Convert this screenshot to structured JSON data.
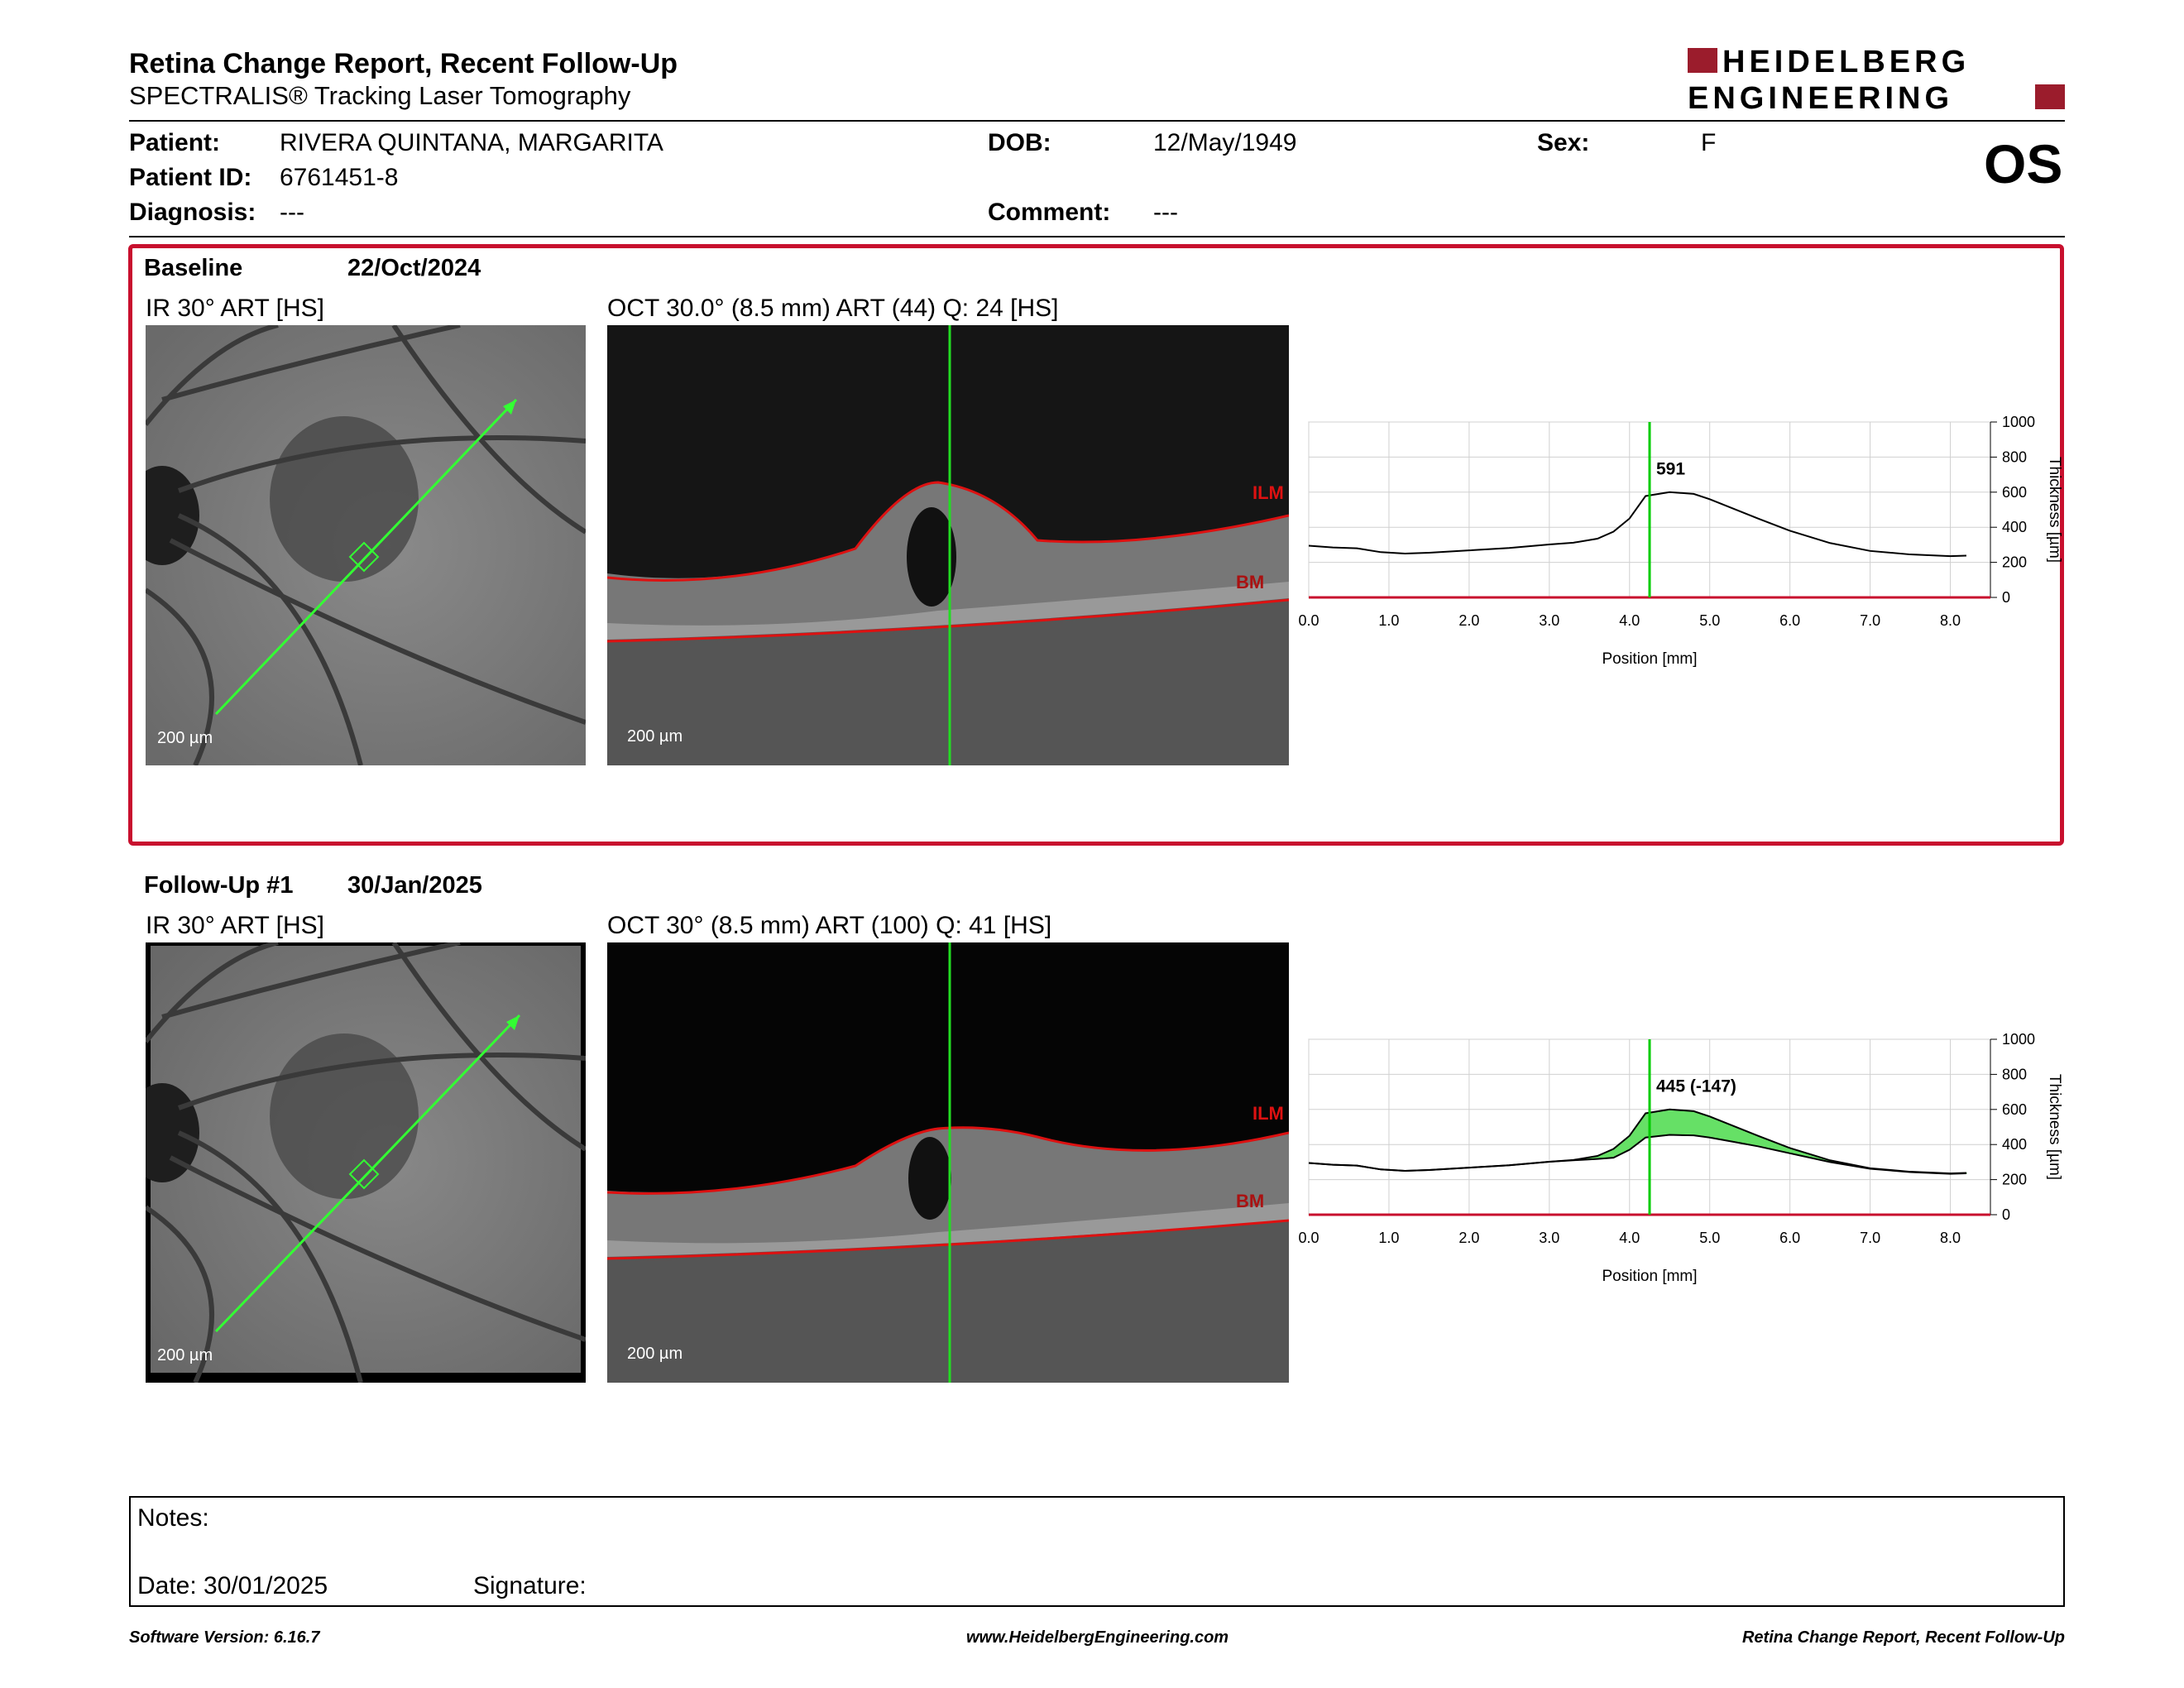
{
  "header": {
    "title": "Retina Change Report, Recent Follow-Up",
    "subtitle": "SPECTRALIS® Tracking Laser Tomography",
    "logo_line1": "HEIDELBERG",
    "logo_line2": "ENGINEERING",
    "brand_color": "#9b1c2c"
  },
  "patient": {
    "patient_label": "Patient:",
    "patient_value": "RIVERA QUINTANA, MARGARITA",
    "id_label": "Patient ID:",
    "id_value": "6761451-8",
    "diagnosis_label": "Diagnosis:",
    "diagnosis_value": "---",
    "dob_label": "DOB:",
    "dob_value": "12/May/1949",
    "comment_label": "Comment:",
    "comment_value": "---",
    "sex_label": "Sex:",
    "sex_value": "F",
    "eye": "OS"
  },
  "baseline": {
    "label": "Baseline",
    "date": "22/Oct/2024",
    "ir_caption": "IR 30° ART [HS]",
    "oct_caption": "OCT 30.0° (8.5 mm) ART (44) Q: 24 [HS]",
    "scale": "200 µm",
    "ilm_label": "ILM",
    "bm_label": "BM"
  },
  "followup": {
    "label": "Follow-Up #1",
    "date": "30/Jan/2025",
    "ir_caption": "IR 30° ART [HS]",
    "oct_caption": "OCT 30° (8.5 mm) ART (100) Q: 41 [HS]",
    "scale": "200 µm",
    "ilm_label": "ILM",
    "bm_label": "BM"
  },
  "chart_data": [
    {
      "type": "line",
      "xlabel": "Position [mm]",
      "ylabel": "Thickness [µm]",
      "xlim": [
        0,
        8.5
      ],
      "ylim": [
        0,
        1000
      ],
      "xticks": [
        "0.0",
        "1.0",
        "2.0",
        "3.0",
        "4.0",
        "5.0",
        "6.0",
        "7.0",
        "8.0"
      ],
      "yticks": [
        "0",
        "200",
        "400",
        "600",
        "800",
        "1000"
      ],
      "cursor_x": 4.25,
      "annotation": "591",
      "series": [
        {
          "x": [
            0,
            0.3,
            0.6,
            0.9,
            1.2,
            1.5,
            2.0,
            2.5,
            3.0,
            3.3,
            3.6,
            3.8,
            4.0,
            4.2,
            4.5,
            4.8,
            5.0,
            5.3,
            5.6,
            6.0,
            6.5,
            7.0,
            7.5,
            8.0,
            8.2
          ],
          "y": [
            295,
            285,
            280,
            258,
            250,
            255,
            268,
            282,
            302,
            312,
            335,
            375,
            450,
            578,
            600,
            590,
            560,
            505,
            450,
            380,
            310,
            265,
            245,
            235,
            238
          ]
        }
      ]
    },
    {
      "type": "line",
      "xlabel": "Position [mm]",
      "ylabel": "Thickness [µm]",
      "xlim": [
        0,
        8.5
      ],
      "ylim": [
        0,
        1000
      ],
      "xticks": [
        "0.0",
        "1.0",
        "2.0",
        "3.0",
        "4.0",
        "5.0",
        "6.0",
        "7.0",
        "8.0"
      ],
      "yticks": [
        "0",
        "200",
        "400",
        "600",
        "800",
        "1000"
      ],
      "cursor_x": 4.25,
      "annotation": "445 (-147)",
      "series": [
        {
          "x": [
            0,
            0.3,
            0.6,
            0.9,
            1.2,
            1.5,
            2.0,
            2.5,
            3.0,
            3.3,
            3.6,
            3.8,
            4.0,
            4.2,
            4.5,
            4.8,
            5.0,
            5.3,
            5.6,
            6.0,
            6.5,
            7.0,
            7.5,
            8.0,
            8.2
          ],
          "y": [
            295,
            285,
            280,
            258,
            250,
            255,
            268,
            282,
            302,
            312,
            335,
            375,
            450,
            578,
            600,
            590,
            560,
            505,
            450,
            380,
            310,
            265,
            245,
            235,
            238
          ]
        },
        {
          "x": [
            0,
            0.3,
            0.6,
            0.9,
            1.2,
            1.5,
            2.0,
            2.5,
            3.0,
            3.3,
            3.6,
            3.8,
            4.0,
            4.2,
            4.5,
            4.8,
            5.0,
            5.3,
            5.6,
            6.0,
            6.5,
            7.0,
            7.5,
            8.0,
            8.2
          ],
          "y": [
            295,
            285,
            280,
            258,
            250,
            255,
            268,
            282,
            302,
            310,
            318,
            325,
            370,
            440,
            455,
            452,
            440,
            415,
            390,
            350,
            300,
            262,
            243,
            233,
            236
          ]
        }
      ]
    }
  ],
  "notes": {
    "notes_label": "Notes:",
    "date_label": "Date: 30/01/2025",
    "signature_label": "Signature:"
  },
  "footer": {
    "software": "Software Version: 6.16.7",
    "url": "www.HeidelbergEngineering.com",
    "report": "Retina Change Report, Recent Follow-Up"
  },
  "colors": {
    "red": "#c8102e",
    "green": "#00cc00",
    "fill_green": "#66e066"
  }
}
